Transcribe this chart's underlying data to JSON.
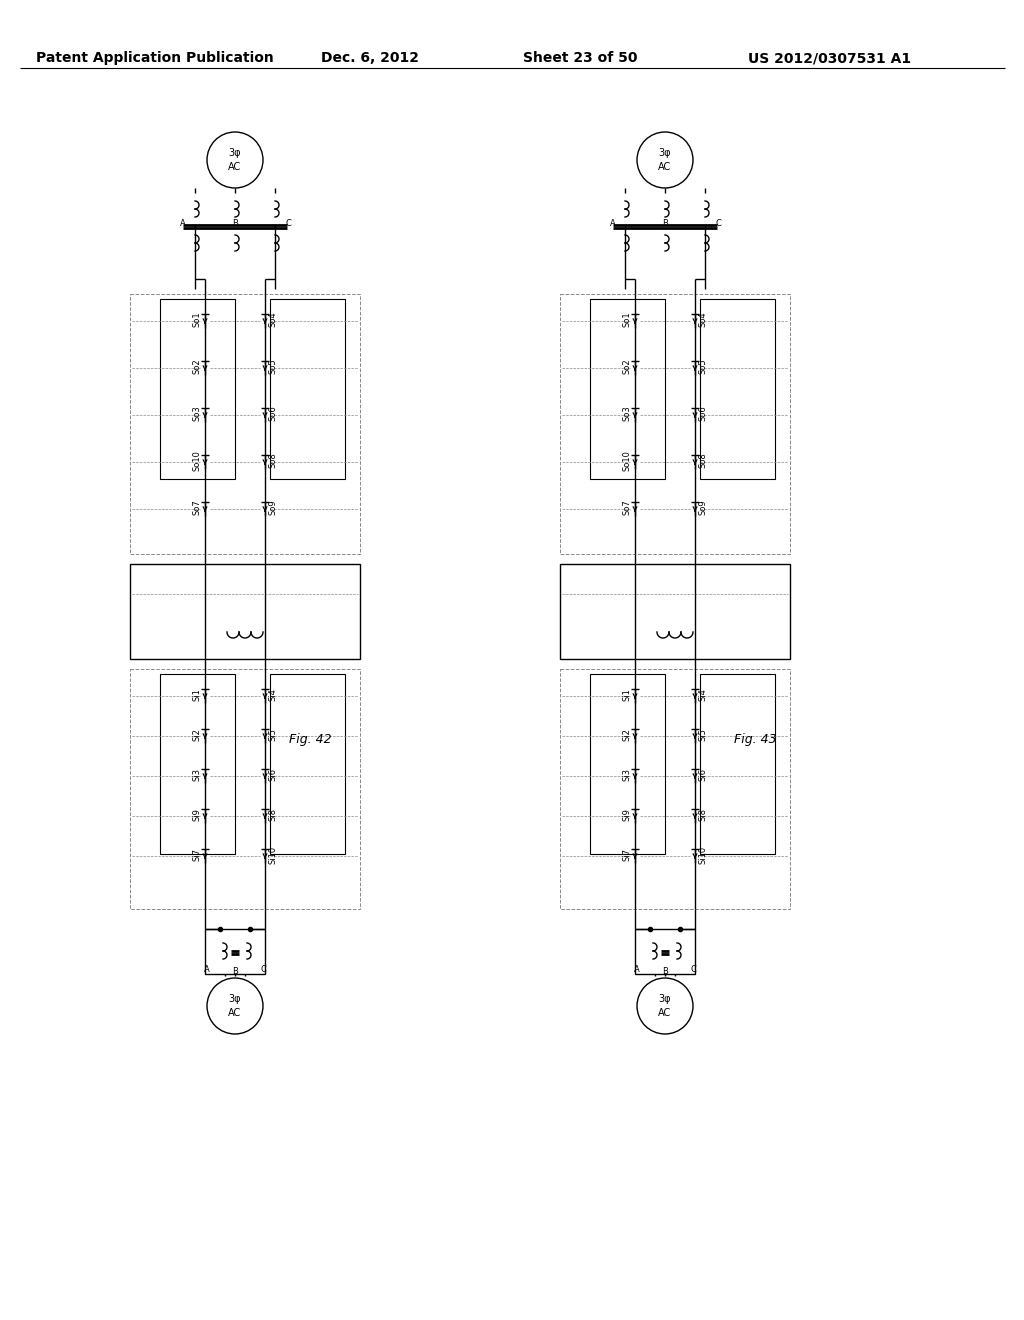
{
  "page_title_left": "Patent Application Publication",
  "page_title_mid": "Dec. 6, 2012",
  "page_title_right_1": "Sheet 23 of 50",
  "page_title_right_2": "US 2012/0307531 A1",
  "fig42_label": "Fig. 42",
  "fig43_label": "Fig. 43",
  "bg_color": "#ffffff",
  "line_color": "#000000",
  "dashed_color": "#888888",
  "header_fontsize": 10,
  "label_fontsize": 7
}
